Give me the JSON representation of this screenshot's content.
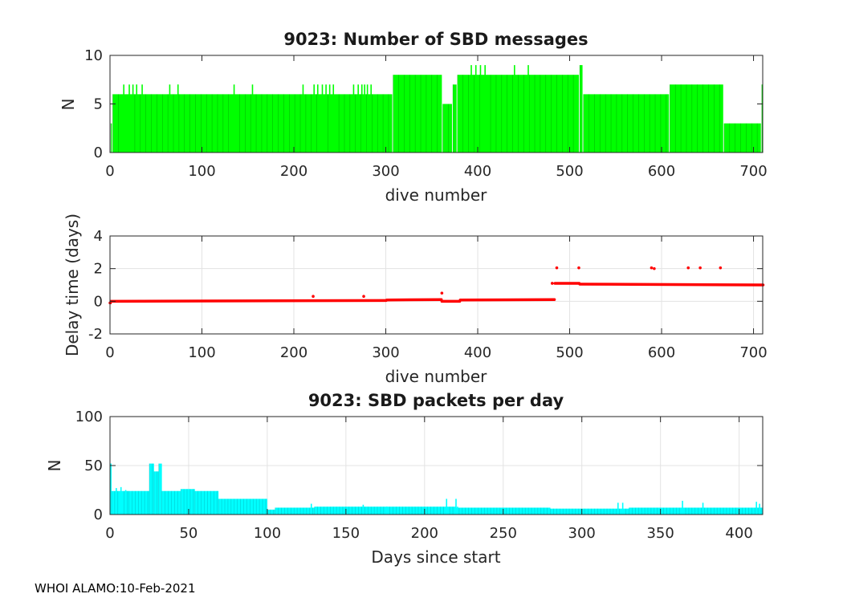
{
  "footer": "WHOI ALAMO:10-Feb-2021",
  "chart_data": [
    {
      "type": "bar",
      "title": "9023: Number of SBD messages",
      "xlabel": "dive number",
      "ylabel": "N",
      "xlim": [
        0,
        710
      ],
      "ylim": [
        0,
        10
      ],
      "xticks": [
        0,
        100,
        200,
        300,
        400,
        500,
        600,
        700
      ],
      "yticks": [
        0,
        5,
        10
      ],
      "grid": false,
      "color": "#00ff00",
      "segments": [
        {
          "from": 1,
          "to": 2,
          "value": 3
        },
        {
          "from": 3,
          "to": 307,
          "value": 6
        },
        {
          "from": 308,
          "to": 361,
          "value": 8
        },
        {
          "from": 362,
          "to": 372,
          "value": 5
        },
        {
          "from": 373,
          "to": 377,
          "value": 7
        },
        {
          "from": 378,
          "to": 510,
          "value": 8
        },
        {
          "from": 511,
          "to": 514,
          "value": 9
        },
        {
          "from": 515,
          "to": 608,
          "value": 6
        },
        {
          "from": 609,
          "to": 667,
          "value": 7
        },
        {
          "from": 668,
          "to": 708,
          "value": 3
        },
        {
          "from": 709,
          "to": 710,
          "value": 7
        }
      ],
      "spikes": [
        {
          "x": 15,
          "value": 7
        },
        {
          "x": 21,
          "value": 7
        },
        {
          "x": 25,
          "value": 7
        },
        {
          "x": 29,
          "value": 7
        },
        {
          "x": 35,
          "value": 7
        },
        {
          "x": 65,
          "value": 7
        },
        {
          "x": 74,
          "value": 7
        },
        {
          "x": 135,
          "value": 7
        },
        {
          "x": 155,
          "value": 7
        },
        {
          "x": 210,
          "value": 7
        },
        {
          "x": 222,
          "value": 7
        },
        {
          "x": 226,
          "value": 7
        },
        {
          "x": 231,
          "value": 7
        },
        {
          "x": 235,
          "value": 7
        },
        {
          "x": 239,
          "value": 7
        },
        {
          "x": 243,
          "value": 7
        },
        {
          "x": 265,
          "value": 7
        },
        {
          "x": 270,
          "value": 7
        },
        {
          "x": 274,
          "value": 7
        },
        {
          "x": 277,
          "value": 7
        },
        {
          "x": 280,
          "value": 7
        },
        {
          "x": 284,
          "value": 7
        },
        {
          "x": 393,
          "value": 9
        },
        {
          "x": 398,
          "value": 9
        },
        {
          "x": 403,
          "value": 9
        },
        {
          "x": 408,
          "value": 9
        },
        {
          "x": 440,
          "value": 9
        },
        {
          "x": 455,
          "value": 9
        }
      ]
    },
    {
      "type": "scatter",
      "title": "",
      "xlabel": "dive number",
      "ylabel": "Delay time (days)",
      "xlim": [
        0,
        710
      ],
      "ylim": [
        -2,
        4
      ],
      "xticks": [
        0,
        100,
        200,
        300,
        400,
        500,
        600,
        700
      ],
      "yticks": [
        -2,
        0,
        2,
        4
      ],
      "grid": true,
      "color": "#ff0000",
      "segments": [
        {
          "from": 0,
          "to": 0,
          "y0": -0.1,
          "y1": -0.1
        },
        {
          "from": 1,
          "to": 300,
          "y0": 0.0,
          "y1": 0.05
        },
        {
          "from": 301,
          "to": 360,
          "y0": 0.08,
          "y1": 0.1
        },
        {
          "from": 361,
          "to": 380,
          "y0": 0.0,
          "y1": 0.0
        },
        {
          "from": 381,
          "to": 483,
          "y0": 0.08,
          "y1": 0.1
        },
        {
          "from": 484,
          "to": 510,
          "y0": 1.1,
          "y1": 1.1
        },
        {
          "from": 511,
          "to": 710,
          "y0": 1.05,
          "y1": 1.0
        }
      ],
      "outliers": [
        {
          "x": 221,
          "y": 0.3
        },
        {
          "x": 276,
          "y": 0.3
        },
        {
          "x": 361,
          "y": 0.5
        },
        {
          "x": 481,
          "y": 1.1
        },
        {
          "x": 486,
          "y": 2.05
        },
        {
          "x": 510,
          "y": 2.05
        },
        {
          "x": 589,
          "y": 2.05
        },
        {
          "x": 592,
          "y": 2.0
        },
        {
          "x": 629,
          "y": 2.05
        },
        {
          "x": 642,
          "y": 2.05
        },
        {
          "x": 664,
          "y": 2.05
        }
      ]
    },
    {
      "type": "bar",
      "title": "9023: SBD packets per day",
      "xlabel": "Days since start",
      "ylabel": "N",
      "xlim": [
        0,
        415
      ],
      "ylim": [
        0,
        100
      ],
      "xticks": [
        0,
        50,
        100,
        150,
        200,
        250,
        300,
        350,
        400
      ],
      "yticks": [
        0,
        50,
        100
      ],
      "grid": true,
      "color": "#00ffff",
      "segments": [
        {
          "from": 0,
          "to": 1,
          "value": 52
        },
        {
          "from": 1,
          "to": 12,
          "value": 24
        },
        {
          "from": 12,
          "to": 25,
          "value": 24
        },
        {
          "from": 25,
          "to": 28,
          "value": 52
        },
        {
          "from": 28,
          "to": 31,
          "value": 44
        },
        {
          "from": 31,
          "to": 33,
          "value": 52
        },
        {
          "from": 33,
          "to": 45,
          "value": 24
        },
        {
          "from": 45,
          "to": 54,
          "value": 26
        },
        {
          "from": 54,
          "to": 69,
          "value": 24
        },
        {
          "from": 69,
          "to": 100,
          "value": 16
        },
        {
          "from": 100,
          "to": 105,
          "value": 5
        },
        {
          "from": 105,
          "to": 130,
          "value": 7
        },
        {
          "from": 130,
          "to": 220,
          "value": 8
        },
        {
          "from": 220,
          "to": 280,
          "value": 7
        },
        {
          "from": 280,
          "to": 330,
          "value": 6
        },
        {
          "from": 330,
          "to": 415,
          "value": 7
        }
      ],
      "spikes": [
        {
          "x": 4,
          "value": 27
        },
        {
          "x": 7,
          "value": 28
        },
        {
          "x": 8,
          "value": 20
        },
        {
          "x": 10,
          "value": 25
        },
        {
          "x": 128,
          "value": 11
        },
        {
          "x": 161,
          "value": 10
        },
        {
          "x": 176,
          "value": 8
        },
        {
          "x": 214,
          "value": 16
        },
        {
          "x": 220,
          "value": 16
        },
        {
          "x": 221,
          "value": 8
        },
        {
          "x": 323,
          "value": 12
        },
        {
          "x": 326,
          "value": 12
        },
        {
          "x": 364,
          "value": 14
        },
        {
          "x": 377,
          "value": 12
        },
        {
          "x": 411,
          "value": 13
        },
        {
          "x": 413,
          "value": 11
        }
      ]
    }
  ]
}
